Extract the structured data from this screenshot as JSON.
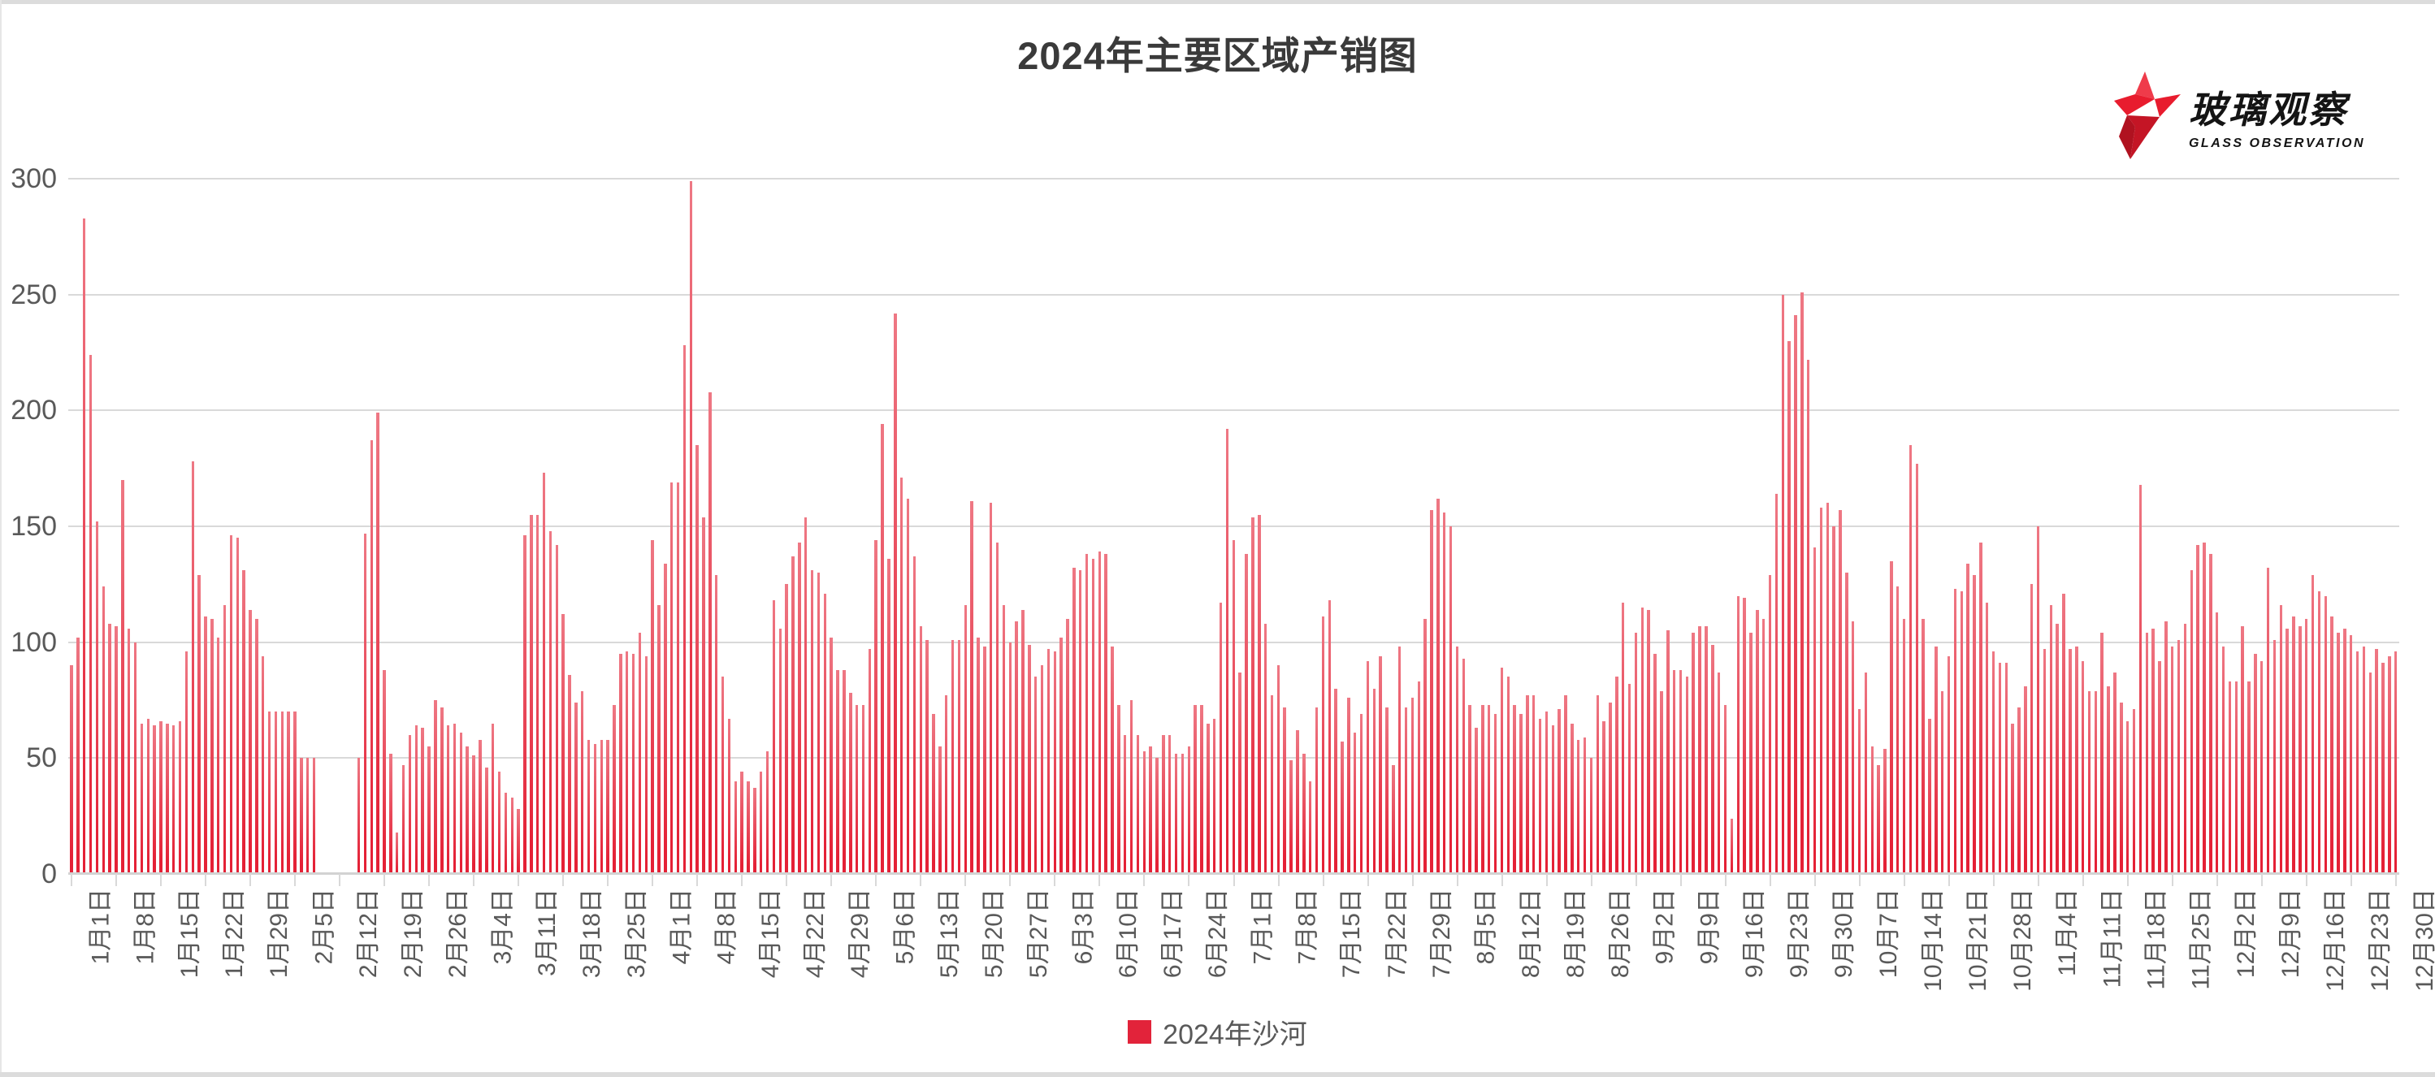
{
  "page": {
    "title": "2024年主要区域产销图"
  },
  "logo": {
    "brand_cn": "玻璃观察",
    "brand_en": "GLASS OBSERVATION",
    "star_color": "#e81c2e",
    "star_dark_color": "#b01220",
    "text_color": "#141414"
  },
  "legend": {
    "label": "2024年沙河",
    "marker_color": "#e2233a",
    "position": "bottom"
  },
  "chart_data": {
    "type": "bar",
    "title": "2024年主要区域产销图",
    "series_name": "2024年沙河",
    "xlabel": "",
    "ylabel": "",
    "ylim": [
      0,
      300
    ],
    "y_ticks": [
      300,
      250,
      200,
      150,
      100,
      50,
      0
    ],
    "grid": true,
    "grid_color": "#d9d9d9",
    "bar_color_top": "#ee7884",
    "bar_color_bottom": "#e42136",
    "start_date": "1月1日",
    "end_date": "12月30日",
    "tick_interval_days": 7,
    "x_tick_labels": [
      "1月1日",
      "1月8日",
      "1月15日",
      "1月22日",
      "1月29日",
      "2月5日",
      "2月12日",
      "2月19日",
      "2月26日",
      "3月4日",
      "3月11日",
      "3月18日",
      "3月25日",
      "4月1日",
      "4月8日",
      "4月15日",
      "4月22日",
      "4月29日",
      "5月6日",
      "5月13日",
      "5月20日",
      "5月27日",
      "6月3日",
      "6月10日",
      "6月17日",
      "6月24日",
      "7月1日",
      "7月8日",
      "7月15日",
      "7月22日",
      "7月29日",
      "8月5日",
      "8月12日",
      "8月19日",
      "8月26日",
      "9月2日",
      "9月9日",
      "9月16日",
      "9月23日",
      "9月30日",
      "10月7日",
      "10月14日",
      "10月21日",
      "10月28日",
      "11月4日",
      "11月11日",
      "11月18日",
      "11月25日",
      "12月2日",
      "12月9日",
      "12月16日",
      "12月23日",
      "12月30日"
    ],
    "month_days": [
      31,
      29,
      31,
      30,
      31,
      30,
      31,
      31,
      30,
      31,
      30,
      30
    ],
    "values": [
      90,
      102,
      283,
      224,
      152,
      124,
      108,
      107,
      170,
      106,
      100,
      65,
      67,
      64,
      66,
      65,
      64,
      66,
      96,
      178,
      129,
      111,
      110,
      102,
      116,
      146,
      145,
      131,
      114,
      110,
      94,
      70,
      70,
      70,
      70,
      70,
      50,
      50,
      50,
      0,
      0,
      0,
      0,
      0,
      0,
      50,
      147,
      187,
      199,
      88,
      52,
      18,
      47,
      60,
      64,
      63,
      55,
      75,
      72,
      64,
      65,
      61,
      55,
      51,
      58,
      46,
      65,
      44,
      35,
      33,
      28,
      146,
      155,
      155,
      173,
      148,
      142,
      112,
      86,
      74,
      79,
      58,
      56,
      58,
      58,
      73,
      95,
      96,
      95,
      104,
      94,
      144,
      116,
      134,
      169,
      169,
      228,
      299,
      185,
      154,
      208,
      129,
      85,
      67,
      40,
      44,
      40,
      37,
      44,
      53,
      118,
      106,
      125,
      137,
      143,
      154,
      131,
      130,
      121,
      102,
      88,
      88,
      78,
      73,
      73,
      97,
      144,
      194,
      136,
      242,
      171,
      162,
      137,
      107,
      101,
      69,
      55,
      77,
      101,
      101,
      116,
      161,
      102,
      98,
      160,
      143,
      116,
      100,
      109,
      114,
      99,
      85,
      90,
      97,
      96,
      102,
      110,
      132,
      131,
      138,
      136,
      139,
      138,
      98,
      73,
      60,
      75,
      60,
      53,
      55,
      50,
      60,
      60,
      52,
      52,
      55,
      73,
      73,
      65,
      67,
      117,
      192,
      144,
      87,
      138,
      154,
      155,
      108,
      77,
      90,
      72,
      49,
      62,
      52,
      40,
      72,
      111,
      118,
      80,
      57,
      76,
      61,
      69,
      92,
      80,
      94,
      72,
      47,
      98,
      72,
      76,
      83,
      110,
      157,
      162,
      156,
      150,
      98,
      93,
      73,
      63,
      73,
      73,
      69,
      89,
      85,
      73,
      69,
      77,
      77,
      67,
      70,
      64,
      71,
      77,
      65,
      58,
      59,
      50,
      77,
      66,
      74,
      85,
      117,
      82,
      104,
      115,
      114,
      95,
      79,
      105,
      88,
      88,
      85,
      104,
      107,
      107,
      99,
      87,
      73,
      24,
      120,
      119,
      104,
      114,
      110,
      129,
      164,
      250,
      230,
      241,
      251,
      222,
      141,
      158,
      160,
      150,
      157,
      130,
      109,
      71,
      87,
      55,
      47,
      54,
      135,
      124,
      110,
      185,
      177,
      110,
      67,
      98,
      79,
      94,
      123,
      122,
      134,
      129,
      143,
      117,
      96,
      91,
      91,
      65,
      72,
      81,
      125,
      150,
      97,
      116,
      108,
      121,
      97,
      98,
      92,
      79,
      79,
      104,
      81,
      87,
      74,
      66,
      71,
      168,
      104,
      106,
      92,
      109,
      98,
      101,
      108,
      131,
      142,
      143,
      138,
      113,
      98,
      83,
      83,
      107,
      83,
      95,
      92,
      132,
      101,
      116,
      106,
      111,
      107,
      110,
      129,
      122,
      120,
      111,
      104,
      106,
      103,
      96,
      98,
      87,
      97,
      91,
      94,
      96
    ]
  }
}
